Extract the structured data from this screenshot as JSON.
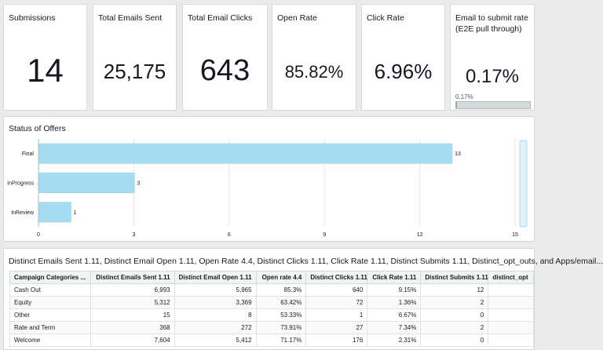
{
  "kpis": [
    {
      "title": "Submissions",
      "value": "14"
    },
    {
      "title": "Total Emails Sent",
      "value": "25,175"
    },
    {
      "title": "Total Email Clicks",
      "value": "643"
    },
    {
      "title": "Open Rate",
      "value": "85.82%"
    },
    {
      "title": "Click Rate",
      "value": "6.96%"
    },
    {
      "title": "Email to submit rate\n(E2E pull through)",
      "value": "0.17%",
      "progress_label": "0.17%",
      "progress_fraction": 0.0017
    }
  ],
  "status_panel": {
    "title": "Status of Offers"
  },
  "chart_data": {
    "type": "bar",
    "orientation": "horizontal",
    "title": "Status of Offers",
    "categories": [
      "Final",
      "InProgress",
      "InReview"
    ],
    "values": [
      13,
      3,
      1
    ],
    "xlim": [
      0,
      15
    ],
    "xticks": [
      0,
      3,
      6,
      9,
      12,
      15
    ],
    "grid": true,
    "bar_color": "#a6dcef"
  },
  "table_panel": {
    "title": "Distinct Emails Sent 1.11, Distinct Email Open 1.11, Open Rate 4.4, Distinct Clicks 1.11, Click Rate 1.11, Distinct Submits 1.11, Distinct_opt_outs, and Apps/email...",
    "columns": [
      "Campaign Categories ...",
      "Distinct Emails Sent 1.11",
      "Distinct Email Open 1.11",
      "Open rate 4.4",
      "Distinct Clicks 1.11",
      "Click Rate 1.11",
      "Distinct Submits 1.11",
      "distinct_opt"
    ],
    "rows": [
      [
        "Cash Out",
        "6,993",
        "5,965",
        "85.3%",
        "640",
        "9.15%",
        "12",
        ""
      ],
      [
        "Equity",
        "5,312",
        "3,369",
        "63.42%",
        "72",
        "1.36%",
        "2",
        ""
      ],
      [
        "Other",
        "15",
        "8",
        "53.33%",
        "1",
        "6.67%",
        "0",
        ""
      ],
      [
        "Rate and Term",
        "368",
        "272",
        "73.91%",
        "27",
        "7.34%",
        "2",
        ""
      ],
      [
        "Welcome",
        "7,604",
        "5,412",
        "71.17%",
        "176",
        "2.31%",
        "0",
        ""
      ]
    ]
  },
  "colors": {
    "accent": "#44b9d6",
    "bar": "#a6dcef",
    "border": "#d5dbdb"
  }
}
